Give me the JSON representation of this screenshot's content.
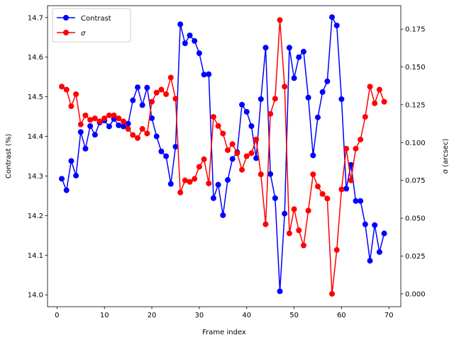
{
  "chart_data": {
    "type": "line",
    "xlabel": "Frame index",
    "ylabel_left": "Contrast (%)",
    "ylabel_right": "σ (arcsec)",
    "xlim": [
      -2,
      72.5
    ],
    "ylim_left": [
      13.97,
      14.73
    ],
    "ylim_right": [
      -0.0085,
      0.1905
    ],
    "xticks": [
      0,
      10,
      20,
      30,
      40,
      50,
      60,
      70
    ],
    "yticks_left": [
      14.0,
      14.1,
      14.2,
      14.3,
      14.4,
      14.5,
      14.6,
      14.7
    ],
    "yticks_right": [
      0.0,
      0.025,
      0.05,
      0.075,
      0.1,
      0.125,
      0.15,
      0.175
    ],
    "yticks_left_labels": [
      "14.0",
      "14.1",
      "14.2",
      "14.3",
      "14.4",
      "14.5",
      "14.6",
      "14.7"
    ],
    "yticks_right_labels": [
      "0.000",
      "0.025",
      "0.050",
      "0.075",
      "0.100",
      "0.125",
      "0.150",
      "0.175"
    ],
    "legend_position": "top-left",
    "grid": false,
    "x": [
      1,
      2,
      3,
      4,
      5,
      6,
      7,
      8,
      9,
      10,
      11,
      12,
      13,
      14,
      15,
      16,
      17,
      18,
      19,
      20,
      21,
      22,
      23,
      24,
      25,
      26,
      27,
      28,
      29,
      30,
      31,
      32,
      33,
      34,
      35,
      36,
      37,
      38,
      39,
      40,
      41,
      42,
      43,
      44,
      45,
      46,
      47,
      48,
      49,
      50,
      51,
      52,
      53,
      54,
      55,
      56,
      57,
      58,
      59,
      60,
      61,
      62,
      63,
      64,
      65,
      66,
      67,
      68,
      69
    ],
    "series": [
      {
        "name": "Contrast",
        "axis": "left",
        "color": "#0000ff",
        "values": [
          14.293,
          14.264,
          14.338,
          14.301,
          14.411,
          14.369,
          14.426,
          14.404,
          14.435,
          14.44,
          14.425,
          14.444,
          14.428,
          14.425,
          14.432,
          14.491,
          14.524,
          14.479,
          14.523,
          14.446,
          14.4,
          14.362,
          14.35,
          14.28,
          14.374,
          14.683,
          14.635,
          14.655,
          14.641,
          14.61,
          14.556,
          14.557,
          14.244,
          14.278,
          14.201,
          14.29,
          14.343,
          14.36,
          14.48,
          14.462,
          14.426,
          14.345,
          14.494,
          14.624,
          14.305,
          14.244,
          14.009,
          14.205,
          14.624,
          14.547,
          14.6,
          14.614,
          14.498,
          14.352,
          14.448,
          14.512,
          14.539,
          14.701,
          14.68,
          14.494,
          14.268,
          14.328,
          14.237,
          14.237,
          14.178,
          14.086,
          14.176,
          14.108,
          14.155
        ]
      },
      {
        "name": "σ",
        "axis": "right",
        "color": "#ff0000",
        "values": [
          0.137,
          0.135,
          0.124,
          0.132,
          0.112,
          0.118,
          0.115,
          0.116,
          0.114,
          0.116,
          0.118,
          0.118,
          0.116,
          0.114,
          0.109,
          0.105,
          0.103,
          0.109,
          0.106,
          0.127,
          0.133,
          0.135,
          0.132,
          0.143,
          0.129,
          0.067,
          0.075,
          0.074,
          0.076,
          0.084,
          0.089,
          0.073,
          0.117,
          0.111,
          0.106,
          0.095,
          0.099,
          0.093,
          0.082,
          0.091,
          0.093,
          0.102,
          0.079,
          0.046,
          0.119,
          0.129,
          0.181,
          0.137,
          0.04,
          0.056,
          0.042,
          0.032,
          0.055,
          0.079,
          0.071,
          0.066,
          0.063,
          0.0,
          0.029,
          0.069,
          0.096,
          0.075,
          0.096,
          0.102,
          0.117,
          0.137,
          0.126,
          0.135,
          0.127
        ]
      }
    ]
  }
}
